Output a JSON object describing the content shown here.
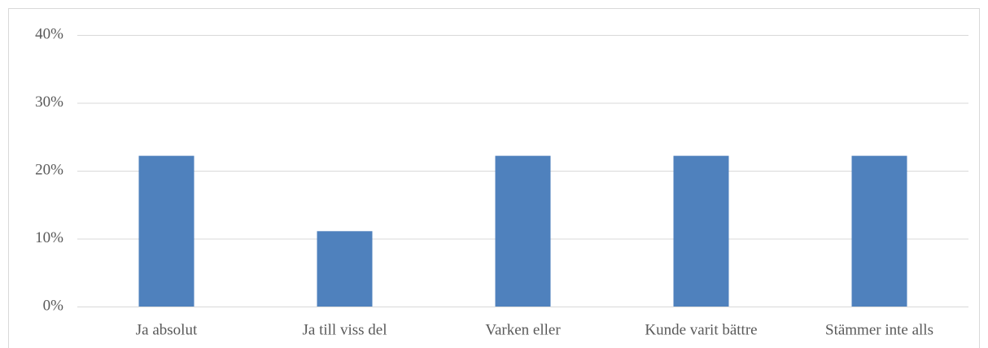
{
  "chart_data": {
    "type": "bar",
    "categories": [
      "Ja absolut",
      "Ja till viss del",
      "Varken eller",
      "Kunde varit bättre",
      "Stämmer inte alls"
    ],
    "values": [
      22.2,
      11.1,
      22.2,
      22.2,
      22.2
    ],
    "color": "#4f81bd",
    "ylim": [
      0,
      40
    ],
    "yticks": [
      {
        "value": 0,
        "label": "0%"
      },
      {
        "value": 10,
        "label": "10%"
      },
      {
        "value": 20,
        "label": "20%"
      },
      {
        "value": 30,
        "label": "30%"
      },
      {
        "value": 40,
        "label": "40%"
      }
    ],
    "grid": true
  }
}
